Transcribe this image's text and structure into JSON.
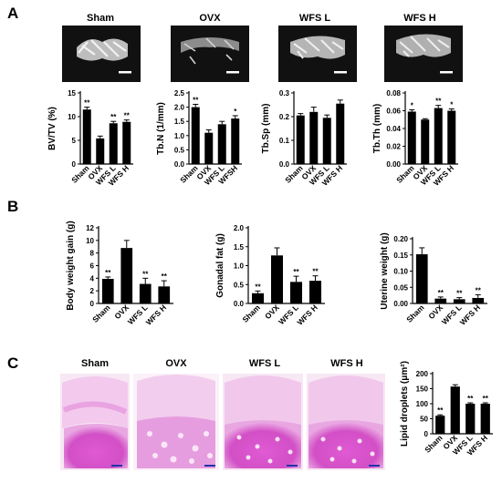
{
  "panel_labels": [
    "A",
    "B",
    "C"
  ],
  "group_titles": [
    "Sham",
    "OVX",
    "WFS L",
    "WFS H"
  ],
  "colors": {
    "bar": "#000000",
    "he_pink": "#d24fc6",
    "he_light": "#f0c8ea",
    "bone_bg": "#111111",
    "scale_bar": "#2233aa"
  },
  "chart_data": [
    {
      "type": "bar",
      "categories": [
        "Sham",
        "OVX",
        "WFS L",
        "WFS H"
      ],
      "values": [
        11.5,
        5.4,
        8.6,
        8.9
      ],
      "errors": [
        0.5,
        0.5,
        0.4,
        0.4
      ],
      "annotations": [
        "**",
        "",
        "**",
        "**"
      ],
      "ylabel": "BV/TV (%)",
      "ylim": [
        0,
        15
      ],
      "yticks": [
        "0",
        "5",
        "10",
        "15"
      ]
    },
    {
      "type": "bar",
      "categories": [
        "Sham",
        "OVX",
        "WFS L",
        "WFSH"
      ],
      "values": [
        2.0,
        1.1,
        1.4,
        1.6
      ],
      "errors": [
        0.1,
        0.1,
        0.1,
        0.1
      ],
      "annotations": [
        "**",
        "",
        "",
        "*"
      ],
      "ylabel": "Tb.N (1/mm)",
      "ylim": [
        0,
        2.5
      ],
      "yticks": [
        "0.0",
        "0.5",
        "1.0",
        "1.5",
        "2.0",
        "2.5"
      ]
    },
    {
      "type": "bar",
      "categories": [
        "Sham",
        "OVX",
        "WFS L",
        "WFS H"
      ],
      "values": [
        0.205,
        0.22,
        0.195,
        0.255
      ],
      "errors": [
        0.008,
        0.02,
        0.012,
        0.015
      ],
      "annotations": [
        "",
        "",
        "",
        ""
      ],
      "ylabel": "Tb.Sp (mm)",
      "ylim": [
        0,
        0.3
      ],
      "yticks": [
        "0.0",
        "0.1",
        "0.2",
        "0.3"
      ]
    },
    {
      "type": "bar",
      "categories": [
        "Sham",
        "OVX",
        "WFS L",
        "WFS H"
      ],
      "values": [
        0.059,
        0.05,
        0.063,
        0.06
      ],
      "errors": [
        0.002,
        0.001,
        0.003,
        0.002
      ],
      "annotations": [
        "*",
        "",
        "**",
        "*"
      ],
      "ylabel": "Tb.Th (mm)",
      "ylim": [
        0,
        0.08
      ],
      "yticks": [
        "0.00",
        "0.02",
        "0.04",
        "0.06",
        "0.08"
      ]
    },
    {
      "type": "bar",
      "categories": [
        "Sham",
        "OVX",
        "WFS L",
        "WFS H"
      ],
      "values": [
        3.9,
        8.8,
        3.1,
        2.7
      ],
      "errors": [
        0.3,
        1.2,
        0.9,
        0.9
      ],
      "annotations": [
        "**",
        "",
        "**",
        "**"
      ],
      "ylabel": "Body weight gain (g)",
      "ylim": [
        0,
        12
      ],
      "yticks": [
        "0",
        "2",
        "4",
        "6",
        "8",
        "10",
        "12"
      ]
    },
    {
      "type": "bar",
      "categories": [
        "Sham",
        "OVX",
        "WFS L",
        "WFS H"
      ],
      "values": [
        0.27,
        1.27,
        0.57,
        0.6
      ],
      "errors": [
        0.06,
        0.2,
        0.15,
        0.13
      ],
      "annotations": [
        "**",
        "",
        "**",
        "**"
      ],
      "ylabel": "Gonadal fat (g)",
      "ylim": [
        0,
        2.0
      ],
      "yticks": [
        "0.0",
        "0.5",
        "1.0",
        "1.5",
        "2.0"
      ]
    },
    {
      "type": "bar",
      "categories": [
        "Sham",
        "OVX",
        "WFS L",
        "WFS H"
      ],
      "values": [
        0.152,
        0.015,
        0.013,
        0.017
      ],
      "errors": [
        0.02,
        0.005,
        0.005,
        0.01
      ],
      "annotations": [
        "",
        "**",
        "**",
        "**"
      ],
      "ylabel": "Uterine weight (g)",
      "ylim": [
        0,
        0.2
      ],
      "yticks": [
        "0.00",
        "0.05",
        "0.10",
        "0.15",
        "0.20"
      ]
    },
    {
      "type": "bar",
      "categories": [
        "Sham",
        "OVX",
        "WFS L",
        "WFS H"
      ],
      "values": [
        60,
        157,
        100,
        100
      ],
      "errors": [
        3,
        6,
        3,
        3
      ],
      "annotations": [
        "**",
        "",
        "**",
        "**"
      ],
      "ylabel": "Lipid droplets (μm²)",
      "ylim": [
        0,
        200
      ],
      "yticks": [
        "0",
        "50",
        "100",
        "150",
        "200"
      ]
    }
  ]
}
